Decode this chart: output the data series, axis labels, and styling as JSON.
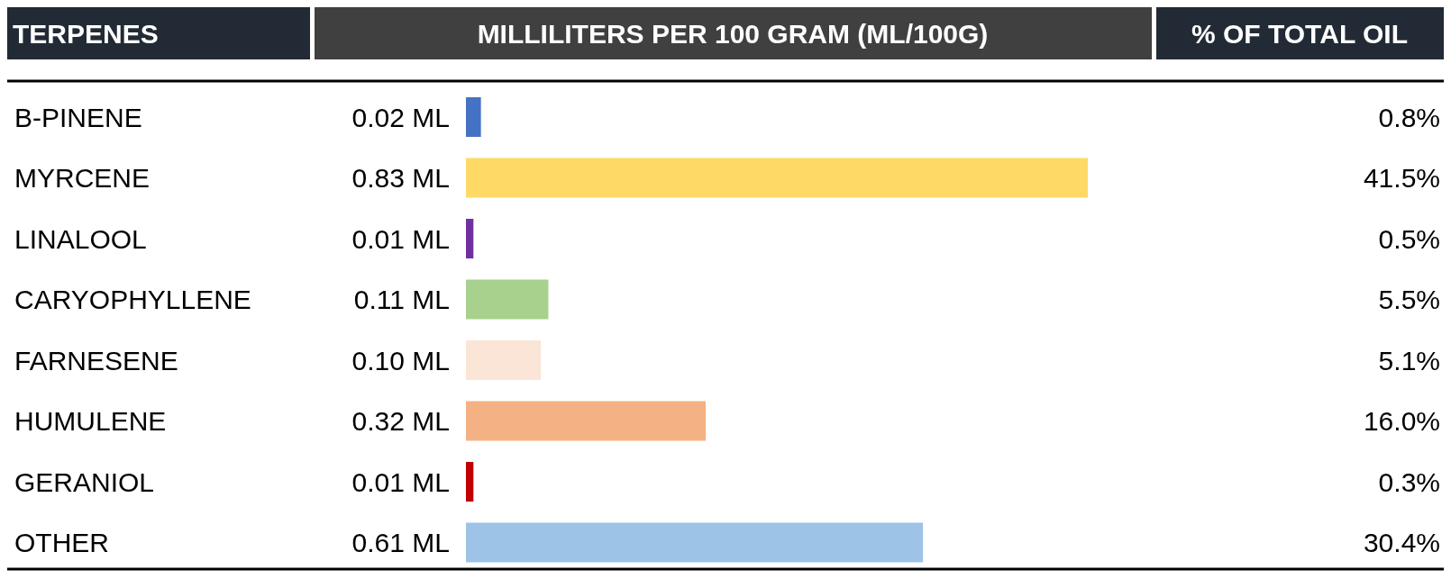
{
  "chart_data": {
    "type": "bar",
    "orientation": "horizontal",
    "ylabel": "TERPENES",
    "xlabel": "MILLILITERS PER 100 GRAM (ML/100G)",
    "y2label": "% OF TOTAL OIL",
    "categories": [
      "B-PINENE",
      "MYRCENE",
      "LINALOOL",
      "CARYOPHYLLENE",
      "FARNESENE",
      "HUMULENE",
      "GERANIOL",
      "OTHER"
    ],
    "series": [
      {
        "colors": [
          "#4472c4",
          "#ffd966",
          "#7030a0",
          "#a9d18e",
          "#fbe5d6",
          "#f4b183",
          "#c00000",
          "#9dc3e6"
        ],
        "values": [
          0.02,
          0.83,
          0.01,
          0.11,
          0.1,
          0.32,
          0.01,
          0.61
        ],
        "value_labels": [
          "0.02 ML",
          "0.83 ML",
          "0.01 ML",
          "0.11 ML",
          "0.10 ML",
          "0.32 ML",
          "0.01 ML",
          "0.61 ML"
        ]
      }
    ],
    "annotations": [
      "0.8%",
      "41.5%",
      "0.5%",
      "5.5%",
      "5.1%",
      "16.0%",
      "0.3%",
      "30.4%"
    ]
  }
}
